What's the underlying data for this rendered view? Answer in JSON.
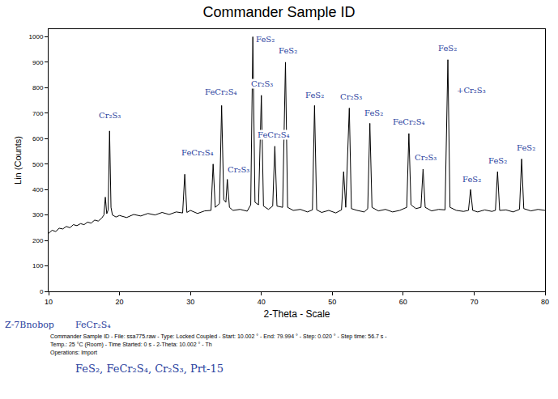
{
  "chart_data": {
    "type": "line",
    "title": "Commander Sample ID",
    "x_label": "2-Theta - Scale",
    "y_label": "Lin (Counts)",
    "color": "#000000",
    "grid": false,
    "xlim": [
      10,
      80
    ],
    "xticks": [
      10,
      20,
      30,
      40,
      50,
      60,
      70,
      80
    ],
    "ylim": [
      0,
      1030
    ],
    "yticks": [
      0,
      100,
      200,
      300,
      400,
      500,
      600,
      700,
      800,
      900,
      1000
    ],
    "x": [
      10.0,
      10.5,
      11.0,
      11.5,
      12.0,
      12.5,
      13.0,
      13.5,
      14.0,
      14.5,
      15.0,
      15.5,
      16.0,
      16.5,
      17.0,
      17.5,
      17.8,
      18.0,
      18.2,
      18.4,
      18.6,
      18.8,
      19.0,
      19.5,
      20.0,
      21.0,
      22.0,
      23.0,
      24.0,
      25.0,
      26.0,
      27.0,
      28.0,
      28.9,
      29.2,
      29.5,
      30.0,
      31.0,
      32.0,
      32.9,
      33.2,
      33.5,
      34.1,
      34.4,
      34.7,
      35.0,
      35.2,
      35.5,
      36.0,
      37.0,
      38.0,
      38.5,
      38.8,
      39.1,
      39.6,
      40.0,
      40.3,
      41.0,
      41.6,
      41.9,
      42.2,
      43.0,
      43.4,
      43.7,
      44.5,
      45.5,
      46.5,
      47.2,
      47.5,
      47.8,
      48.5,
      49.5,
      50.5,
      51.3,
      51.6,
      51.9,
      52.4,
      52.7,
      53.5,
      54.5,
      55.0,
      55.3,
      55.6,
      56.5,
      57.5,
      58.5,
      59.5,
      60.5,
      60.8,
      61.1,
      61.8,
      62.5,
      62.8,
      63.1,
      64.0,
      65.0,
      65.9,
      66.3,
      66.6,
      67.5,
      68.5,
      69.2,
      69.5,
      69.8,
      70.5,
      71.5,
      72.5,
      73.0,
      73.3,
      73.6,
      74.5,
      75.5,
      76.4,
      76.7,
      77.0,
      78.0,
      79.0,
      80.0
    ],
    "values": [
      228,
      240,
      235,
      248,
      245,
      255,
      250,
      262,
      258,
      266,
      262,
      272,
      268,
      280,
      276,
      288,
      300,
      370,
      305,
      320,
      630,
      330,
      300,
      292,
      298,
      290,
      302,
      296,
      306,
      300,
      310,
      302,
      312,
      308,
      460,
      310,
      318,
      306,
      316,
      318,
      500,
      330,
      345,
      730,
      360,
      350,
      440,
      330,
      318,
      322,
      315,
      340,
      1000,
      350,
      340,
      770,
      335,
      322,
      335,
      570,
      335,
      330,
      900,
      330,
      318,
      322,
      312,
      320,
      730,
      320,
      310,
      318,
      308,
      320,
      470,
      330,
      720,
      325,
      318,
      312,
      325,
      660,
      330,
      316,
      322,
      312,
      318,
      330,
      620,
      340,
      325,
      330,
      480,
      330,
      316,
      322,
      320,
      910,
      330,
      318,
      314,
      318,
      400,
      318,
      312,
      320,
      314,
      318,
      470,
      318,
      320,
      312,
      322,
      520,
      325,
      316,
      322,
      318
    ],
    "annotations": [
      {
        "text": "Cr₂S₃",
        "x": 18.6,
        "y": 690
      },
      {
        "text": "FeCr₂S₄",
        "x": 31.0,
        "y": 545
      },
      {
        "text": "FeCr₂S₄",
        "x": 34.3,
        "y": 785
      },
      {
        "text": "Cr₂S₃",
        "x": 36.8,
        "y": 480
      },
      {
        "text": "FeS₂",
        "x": 40.6,
        "y": 990
      },
      {
        "text": "Cr₂S₃",
        "x": 40.1,
        "y": 815
      },
      {
        "text": "FeCr₂S₄",
        "x": 41.7,
        "y": 615
      },
      {
        "text": "FeS₂",
        "x": 43.8,
        "y": 945
      },
      {
        "text": "FeS₂",
        "x": 47.5,
        "y": 770
      },
      {
        "text": "Cr₂S₃",
        "x": 52.6,
        "y": 765
      },
      {
        "text": "FeS₂",
        "x": 55.8,
        "y": 700
      },
      {
        "text": "FeCr₂S₄",
        "x": 60.8,
        "y": 665
      },
      {
        "text": "Cr₂S₃",
        "x": 63.2,
        "y": 525
      },
      {
        "text": "FeS₂",
        "x": 66.2,
        "y": 955
      },
      {
        "text": "+Cr₂S₃",
        "x": 69.6,
        "y": 790
      },
      {
        "text": "FeS₂",
        "x": 69.7,
        "y": 440
      },
      {
        "text": "FeS₂",
        "x": 73.3,
        "y": 515
      },
      {
        "text": "FeS₂",
        "x": 77.3,
        "y": 565
      }
    ],
    "footer": [
      "Commander Sample ID - File: ssa775.raw - Type: Locked Coupled - Start: 10.002 ° - End: 79.994 ° - Step: 0.020 ° - Step time: 56.7 s - Temp.: 25 °C (Room) - Time Started: 0 s - 2-Theta: 10.002 ° - Th",
      "Operations: Import"
    ],
    "notes": [
      "Z-7Bnobop",
      "FeCr₂S₄",
      "FeS₂, FeCr₂S₄, Cr₂S₃, Prt-15"
    ]
  }
}
